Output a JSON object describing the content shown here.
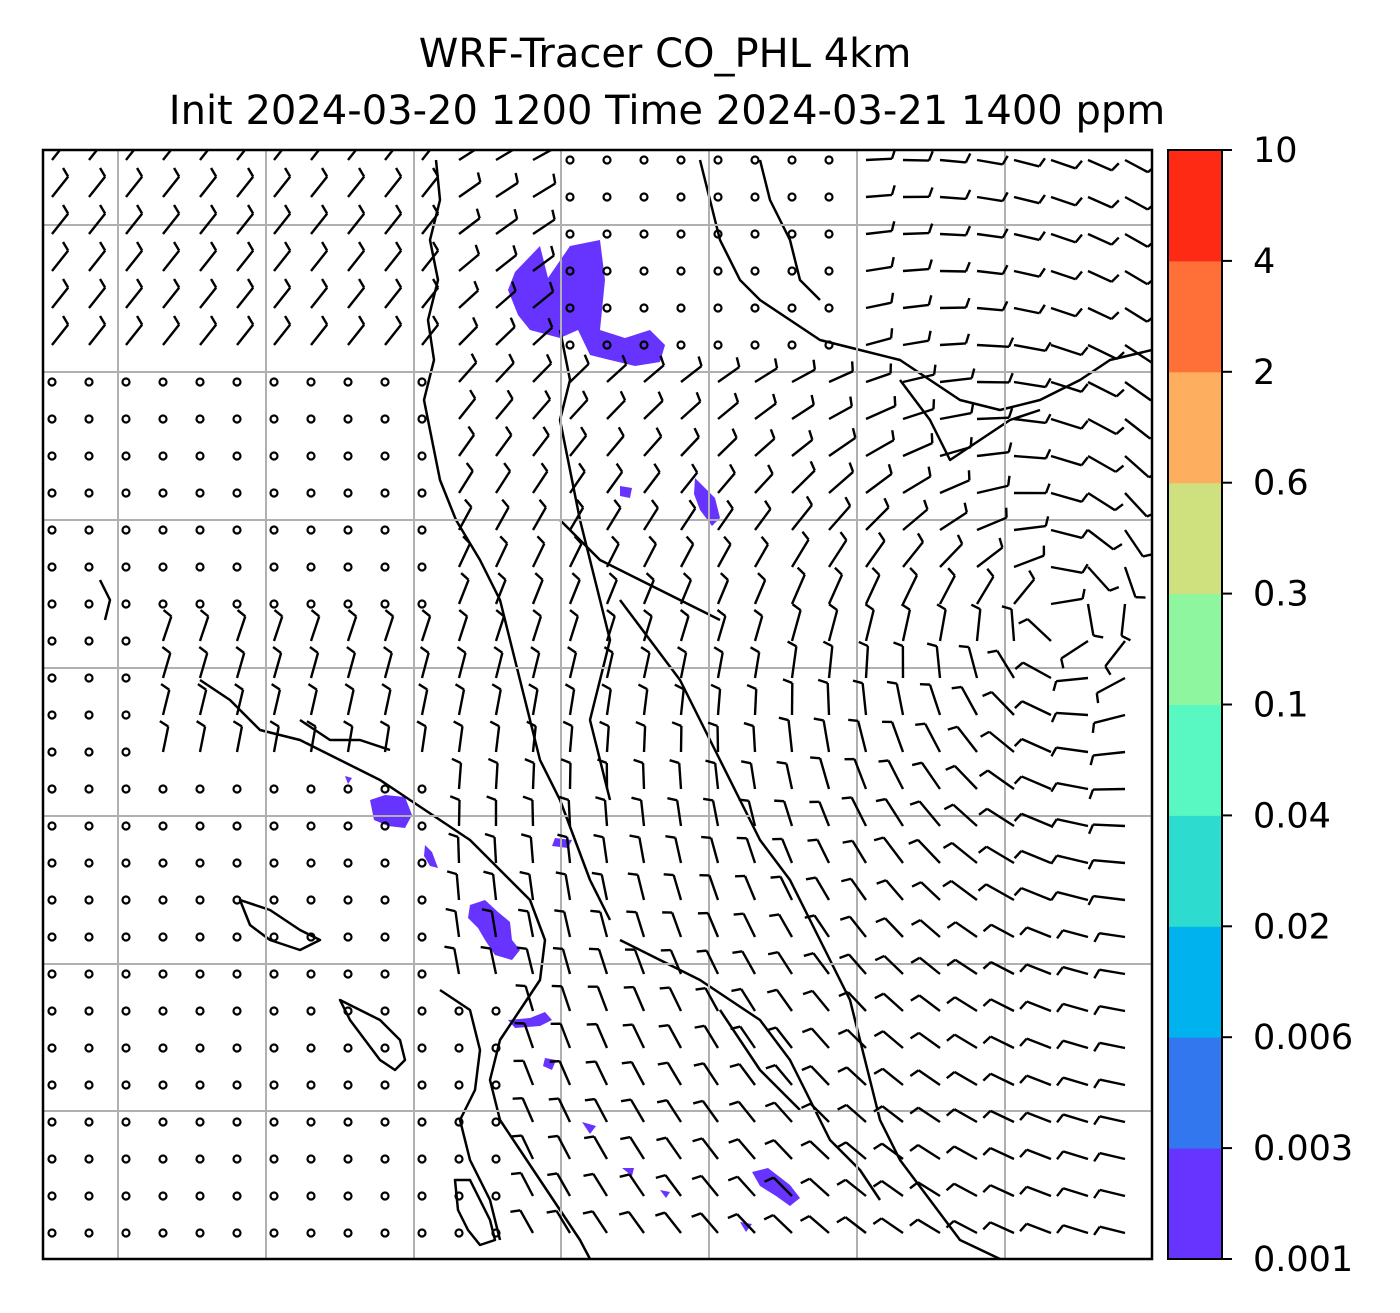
{
  "title": {
    "line1": "WRF-Tracer CO_PHL 4km",
    "line2": "Init 2024-03-20 1200 Time 2024-03-21 1400 ppm"
  },
  "colorbar": {
    "labels": [
      "0.001",
      "0.003",
      "0.006",
      "0.02",
      "0.04",
      "0.1",
      "0.3",
      "0.6",
      "2",
      "4",
      "10"
    ],
    "colors": [
      "#6633ff",
      "#3377ee",
      "#00b2ee",
      "#2edccf",
      "#59f8c3",
      "#8ff6a0",
      "#cfe17f",
      "#feae5f",
      "#fe7038",
      "#fe2a14"
    ]
  },
  "map": {
    "field": "CO tracer concentration",
    "overlay": "wind barbs",
    "gridlines": true,
    "plume_color": "#6633ff"
  }
}
